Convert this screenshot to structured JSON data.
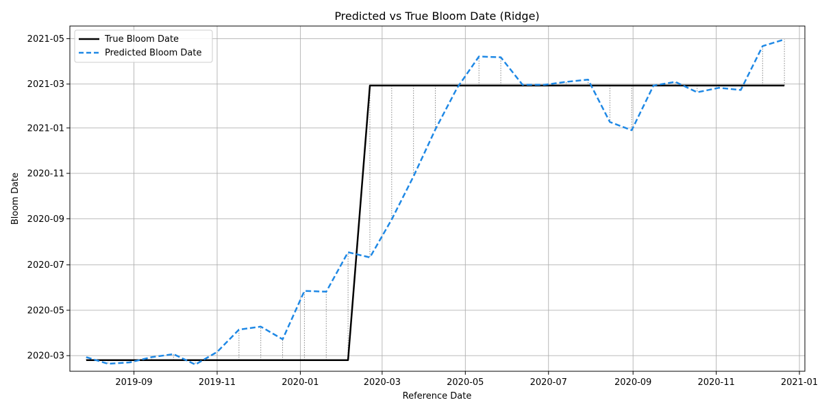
{
  "chart_data": {
    "type": "line",
    "title": "Predicted vs True Bloom Date (Ridge)",
    "xlabel": "Reference Date",
    "ylabel": "Bloom Date",
    "x_tick_labels": [
      "2019-09",
      "2019-11",
      "2020-01",
      "2020-03",
      "2020-05",
      "2020-07",
      "2020-09",
      "2020-11",
      "2021-01"
    ],
    "y_tick_labels": [
      "2020-03",
      "2020-05",
      "2020-07",
      "2020-09",
      "2020-11",
      "2021-01",
      "2021-03",
      "2021-05"
    ],
    "x_ticks": [
      "2019-09-01",
      "2019-11-01",
      "2020-01-01",
      "2020-03-01",
      "2020-05-01",
      "2020-07-01",
      "2020-09-01",
      "2020-11-01",
      "2021-01-01"
    ],
    "y_ticks": [
      "2020-03-01",
      "2020-05-01",
      "2020-07-01",
      "2020-09-01",
      "2020-11-01",
      "2021-01-01",
      "2021-03-01",
      "2021-05-01"
    ],
    "xlim": [
      "2019-07-16",
      "2021-01-05"
    ],
    "ylim": [
      "2020-02-09",
      "2021-05-18"
    ],
    "grid": true,
    "legend": "top-left",
    "x": [
      "2019-07-28",
      "2019-08-13",
      "2019-08-29",
      "2019-09-14",
      "2019-09-30",
      "2019-10-16",
      "2019-11-01",
      "2019-11-17",
      "2019-12-03",
      "2019-12-19",
      "2020-01-04",
      "2020-01-20",
      "2020-02-05",
      "2020-02-21",
      "2020-03-08",
      "2020-03-24",
      "2020-04-09",
      "2020-04-25",
      "2020-05-11",
      "2020-05-27",
      "2020-06-12",
      "2020-06-28",
      "2020-07-14",
      "2020-07-30",
      "2020-08-15",
      "2020-08-31",
      "2020-09-16",
      "2020-10-02",
      "2020-10-18",
      "2020-11-03",
      "2020-11-19",
      "2020-12-05",
      "2020-12-21"
    ],
    "series": [
      {
        "name": "True Bloom Date",
        "color": "#000000",
        "style": "solid",
        "values": [
          "2020-02-24",
          "2020-02-24",
          "2020-02-24",
          "2020-02-24",
          "2020-02-24",
          "2020-02-24",
          "2020-02-24",
          "2020-02-24",
          "2020-02-24",
          "2020-02-24",
          "2020-02-24",
          "2020-02-24",
          "2020-02-24",
          "2021-02-27",
          "2021-02-27",
          "2021-02-27",
          "2021-02-27",
          "2021-02-27",
          "2021-02-27",
          "2021-02-27",
          "2021-02-27",
          "2021-02-27",
          "2021-02-27",
          "2021-02-27",
          "2021-02-27",
          "2021-02-27",
          "2021-02-27",
          "2021-02-27",
          "2021-02-27",
          "2021-02-27",
          "2021-02-27",
          "2021-02-27",
          "2021-02-27"
        ]
      },
      {
        "name": "Predicted Bloom Date",
        "color": "#1e88e5",
        "style": "dashed",
        "values": [
          "2020-02-28",
          "2020-02-19",
          "2020-02-21",
          "2020-02-28",
          "2020-03-03",
          "2020-02-18",
          "2020-03-06",
          "2020-04-05",
          "2020-04-09",
          "2020-03-23",
          "2020-05-27",
          "2020-05-26",
          "2020-07-18",
          "2020-07-11",
          "2020-08-31",
          "2020-10-28",
          "2020-12-30",
          "2021-02-24",
          "2021-04-07",
          "2021-04-06",
          "2021-02-28",
          "2021-02-28",
          "2021-03-04",
          "2021-03-07",
          "2021-01-09",
          "2020-12-29",
          "2021-02-27",
          "2021-03-04",
          "2021-02-18",
          "2021-02-24",
          "2021-02-21",
          "2021-04-21",
          "2021-04-30"
        ]
      }
    ]
  }
}
